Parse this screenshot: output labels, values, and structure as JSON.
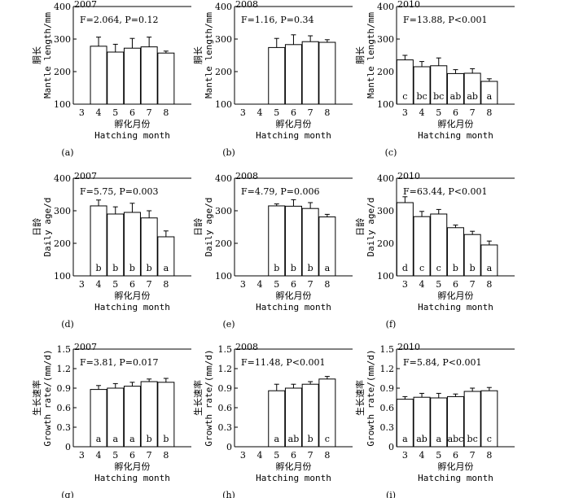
{
  "chart_data": [
    {
      "id": "a",
      "panel_label": "(a)",
      "type": "bar",
      "year": "2007",
      "stat": "F=2.064, P=0.12",
      "ylabel_cn": "胴长",
      "ylabel_en": "Mantle length/mm",
      "xlabel_cn": "孵化月份",
      "xlabel_en": "Hatching month",
      "categories": [
        "3",
        "4",
        "5",
        "6",
        "7",
        "8"
      ],
      "ylim": [
        100,
        400
      ],
      "yticks": [
        100,
        200,
        300,
        400
      ],
      "values": [
        null,
        278,
        260,
        272,
        276,
        257
      ],
      "errors": [
        null,
        28,
        24,
        30,
        30,
        6
      ],
      "letters": [
        null,
        "",
        "",
        "",
        "",
        ""
      ]
    },
    {
      "id": "b",
      "panel_label": "(b)",
      "type": "bar",
      "year": "2008",
      "stat": "F=1.16, P=0.34",
      "ylabel_cn": "胴长",
      "ylabel_en": "Mantle length/mm",
      "xlabel_cn": "孵化月份",
      "xlabel_en": "Hatching month",
      "categories": [
        "3",
        "4",
        "5",
        "6",
        "7",
        "8"
      ],
      "ylim": [
        100,
        400
      ],
      "yticks": [
        100,
        200,
        300,
        400
      ],
      "values": [
        null,
        null,
        274,
        283,
        292,
        290
      ],
      "errors": [
        null,
        null,
        28,
        30,
        18,
        8
      ],
      "letters": [
        null,
        null,
        "",
        "",
        "",
        ""
      ]
    },
    {
      "id": "c",
      "panel_label": "(c)",
      "type": "bar",
      "year": "2010",
      "stat": "F=13.88, P<0.001",
      "ylabel_cn": "胴长",
      "ylabel_en": "Mantle length/mm",
      "xlabel_cn": "孵化月份",
      "xlabel_en": "Hatching month",
      "categories": [
        "3",
        "4",
        "5",
        "6",
        "7",
        "8"
      ],
      "ylim": [
        100,
        400
      ],
      "yticks": [
        100,
        200,
        300,
        400
      ],
      "values": [
        236,
        215,
        218,
        194,
        195,
        170
      ],
      "errors": [
        14,
        16,
        24,
        12,
        14,
        8
      ],
      "letters": [
        "c",
        "bc",
        "bc",
        "ab",
        "ab",
        "a"
      ]
    },
    {
      "id": "d",
      "panel_label": "(d)",
      "type": "bar",
      "year": "2007",
      "stat": "F=5.75, P=0.003",
      "ylabel_cn": "日龄",
      "ylabel_en": "Daily age/d",
      "xlabel_cn": "孵化月份",
      "xlabel_en": "Hatching month",
      "categories": [
        "3",
        "4",
        "5",
        "6",
        "7",
        "8"
      ],
      "ylim": [
        100,
        400
      ],
      "yticks": [
        100,
        200,
        300,
        400
      ],
      "values": [
        null,
        315,
        290,
        295,
        278,
        220
      ],
      "errors": [
        null,
        18,
        22,
        28,
        22,
        18
      ],
      "letters": [
        null,
        "b",
        "b",
        "b",
        "b",
        "a"
      ]
    },
    {
      "id": "e",
      "panel_label": "(e)",
      "type": "bar",
      "year": "2008",
      "stat": "F=4.79, P=0.006",
      "ylabel_cn": "日龄",
      "ylabel_en": "Daily age/d",
      "xlabel_cn": "孵化月份",
      "xlabel_en": "Hatching month",
      "categories": [
        "3",
        "4",
        "5",
        "6",
        "7",
        "8"
      ],
      "ylim": [
        100,
        400
      ],
      "yticks": [
        100,
        200,
        300,
        400
      ],
      "values": [
        null,
        null,
        315,
        314,
        307,
        281
      ],
      "errors": [
        null,
        null,
        6,
        20,
        18,
        8
      ],
      "letters": [
        null,
        null,
        "b",
        "b",
        "b",
        "a"
      ]
    },
    {
      "id": "f",
      "panel_label": "(f)",
      "type": "bar",
      "year": "2010",
      "stat": "F=63.44, P<0.001",
      "ylabel_cn": "日龄",
      "ylabel_en": "Daily age/d",
      "xlabel_cn": "孵化月份",
      "xlabel_en": "Hatching month",
      "categories": [
        "3",
        "4",
        "5",
        "6",
        "7",
        "8"
      ],
      "ylim": [
        100,
        400
      ],
      "yticks": [
        100,
        200,
        300,
        400
      ],
      "values": [
        325,
        282,
        290,
        248,
        227,
        195
      ],
      "errors": [
        18,
        16,
        14,
        8,
        10,
        12
      ],
      "letters": [
        "d",
        "c",
        "c",
        "b",
        "b",
        "a"
      ]
    },
    {
      "id": "g",
      "panel_label": "(g)",
      "type": "bar",
      "year": "2007",
      "stat": "F=3.81, P=0.017",
      "ylabel_cn": "生长速率",
      "ylabel_en": "Growth rate/(mm/d)",
      "xlabel_cn": "孵化月份",
      "xlabel_en": "Hatching month",
      "categories": [
        "3",
        "4",
        "5",
        "6",
        "7",
        "8"
      ],
      "ylim": [
        0,
        1.5
      ],
      "yticks": [
        0,
        0.3,
        0.6,
        0.9,
        1.2,
        1.5
      ],
      "ytick_labels": [
        "0",
        "0.3",
        "0.6",
        "0.9",
        "1.2",
        "1.5"
      ],
      "values": [
        null,
        0.88,
        0.9,
        0.93,
        1.0,
        0.99
      ],
      "errors": [
        null,
        0.06,
        0.07,
        0.06,
        0.04,
        0.06
      ],
      "letters": [
        null,
        "a",
        "a",
        "a",
        "b",
        "b"
      ]
    },
    {
      "id": "h",
      "panel_label": "(h)",
      "type": "bar",
      "year": "2008",
      "stat": "F=11.48, P<0.001",
      "ylabel_cn": "生长速率",
      "ylabel_en": "Growth rate/(mm/d)",
      "xlabel_cn": "孵化月份",
      "xlabel_en": "Hatching month",
      "categories": [
        "3",
        "4",
        "5",
        "6",
        "7",
        "8"
      ],
      "ylim": [
        0,
        1.5
      ],
      "yticks": [
        0,
        0.3,
        0.6,
        0.9,
        1.2,
        1.5
      ],
      "ytick_labels": [
        "0",
        "0.3",
        "0.6",
        "0.9",
        "1.2",
        "1.5"
      ],
      "values": [
        null,
        null,
        0.86,
        0.9,
        0.96,
        1.04
      ],
      "errors": [
        null,
        null,
        0.1,
        0.06,
        0.04,
        0.04
      ],
      "letters": [
        null,
        null,
        "a",
        "ab",
        "b",
        "c"
      ]
    },
    {
      "id": "i",
      "panel_label": "(i)",
      "type": "bar",
      "year": "2010",
      "stat": "F=5.84, P<0.001",
      "ylabel_cn": "生长速率",
      "ylabel_en": "Growth rate/(mm/d)",
      "xlabel_cn": "孵化月份",
      "xlabel_en": "Hatching month",
      "categories": [
        "3",
        "4",
        "5",
        "6",
        "7",
        "8"
      ],
      "ylim": [
        0,
        1.5
      ],
      "yticks": [
        0,
        0.3,
        0.6,
        0.9,
        1.2,
        1.5
      ],
      "ytick_labels": [
        "0",
        "0.3",
        "0.6",
        "0.9",
        "1.2",
        "1.5"
      ],
      "values": [
        0.73,
        0.76,
        0.75,
        0.77,
        0.85,
        0.86
      ],
      "errors": [
        0.04,
        0.06,
        0.07,
        0.04,
        0.05,
        0.05
      ],
      "letters": [
        "a",
        "ab",
        "a",
        "abc",
        "bc",
        "c"
      ]
    }
  ]
}
